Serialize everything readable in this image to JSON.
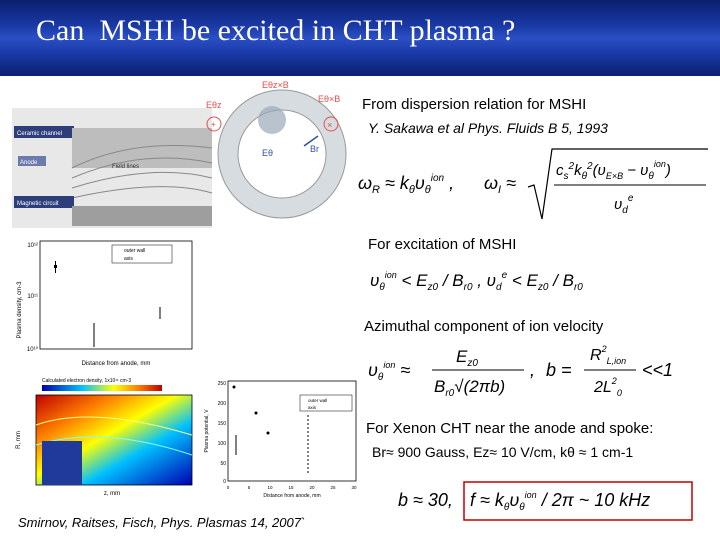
{
  "slide": {
    "title": "Can  MSHI be excited in CHT plasma ?",
    "dispersion_heading": "From dispersion relation for MSHI",
    "reference1": "Y. Sakawa et al Phys. Fluids B 5, 1993",
    "excitation_heading": "For excitation of MSHI",
    "azimuthal_heading": "Azimuthal  component of ion velocity",
    "xenon_line1": "For Xenon CHT near the anode and spoke:",
    "xenon_line2": "Br≈ 900 Gauss, Ez≈ 10 V/cm, kθ ≈ 1 cm-1",
    "reference2": "Smirnov, Raitses, Fisch, Phys. Plasmas 14, 2007`"
  },
  "thruster_diagram": {
    "labels": {
      "channel": "Ceramic channel",
      "anode": "Anode",
      "magnetic": "Magnetic circuit",
      "fieldlines": "Field lines"
    }
  },
  "circle_diagram": {
    "labels": {
      "ezb": "Eθz×B",
      "ez": "Eθz",
      "etb": "Eθ×B",
      "et": "Eθ",
      "br": "Br"
    }
  },
  "density_plot": {
    "ylabel": "Plasma density, cm-3",
    "xlabel": "Distance from anode, mm",
    "yticks": [
      "10¹²",
      "10¹¹",
      "10¹⁰"
    ],
    "legend": [
      "outer wall",
      "axis"
    ]
  },
  "contour_plot": {
    "title": "Calculated electron density, 1x10¹¹ cm-3",
    "xlabel": "z, mm",
    "ylabel": "R, mm",
    "colorbar_ticks": [
      "1",
      "2",
      "3",
      "4",
      "5",
      "6",
      "7",
      "8",
      "9"
    ]
  },
  "potential_plot": {
    "ylabel": "Plasma potential, V",
    "xlabel": "Distance from anode, mm",
    "yticks": [
      "250",
      "200",
      "150",
      "100",
      "50",
      "0"
    ],
    "xticks": [
      "0",
      "5",
      "10",
      "15",
      "20",
      "25",
      "30"
    ],
    "legend": [
      "outer wall",
      "axis"
    ]
  },
  "colors": {
    "title_bar": "#1a3aa8",
    "title_text": "#ffffff",
    "highlight_box": "#c00000"
  }
}
